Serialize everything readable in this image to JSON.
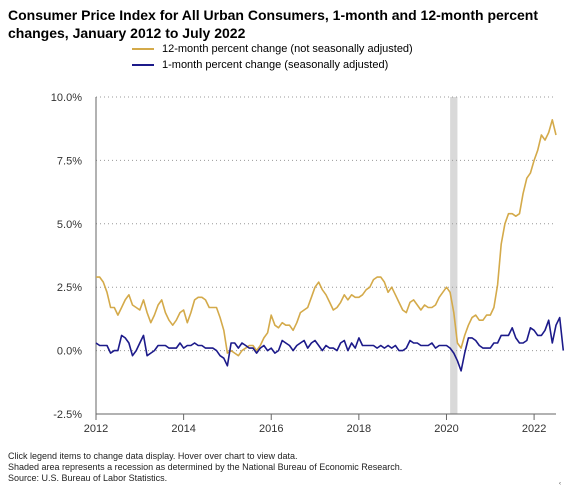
{
  "title": "Consumer Price Index for All Urban Consumers, 1-month and 12-month percent changes, January 2012 to July 2022",
  "legend": {
    "s12": "12-month percent change (not seasonally adjusted)",
    "s1": "1-month percent change (seasonally adjusted)"
  },
  "footer": {
    "line1": "Click legend items to change data display. Hover over chart to view data.",
    "line2": "Shaded area represents a recession as determined by the National Bureau of Economic Research.",
    "line3": "Source: U.S. Bureau of Labor Statistics."
  },
  "colors": {
    "s12": "#d4aa4a",
    "s1": "#1c1a8a",
    "recession": "#d9d9d9",
    "grid": "#999999"
  },
  "corner_mark": "‹",
  "chart_data": {
    "type": "line",
    "title": "Consumer Price Index for All Urban Consumers, 1-month and 12-month percent changes, January 2012 to July 2022",
    "x_start": "2012-01",
    "x_end": "2022-07",
    "xticks": [
      "2012",
      "2014",
      "2016",
      "2018",
      "2020",
      "2022"
    ],
    "yticks": [
      -2.5,
      0,
      2.5,
      5,
      7.5,
      10
    ],
    "ytick_labels": [
      "-2.5%",
      "0.0%",
      "2.5%",
      "5.0%",
      "7.5%",
      "10.0%"
    ],
    "ylim": [
      -2.5,
      10
    ],
    "grid": "horizontal dotted",
    "legend_position": "top",
    "recession": {
      "start": "2020-02",
      "end": "2020-04"
    },
    "series": [
      {
        "name": "12-month percent change (not seasonally adjusted)",
        "values": [
          2.9,
          2.9,
          2.7,
          2.3,
          1.7,
          1.7,
          1.4,
          1.7,
          2.0,
          2.2,
          1.8,
          1.7,
          1.6,
          2.0,
          1.5,
          1.1,
          1.4,
          1.8,
          2.0,
          1.5,
          1.2,
          1.0,
          1.2,
          1.5,
          1.6,
          1.1,
          1.5,
          2.0,
          2.1,
          2.1,
          2.0,
          1.7,
          1.7,
          1.7,
          1.3,
          0.8,
          -0.1,
          0.0,
          -0.1,
          -0.2,
          0.0,
          0.1,
          0.2,
          0.2,
          0.0,
          0.2,
          0.5,
          0.7,
          1.4,
          1.0,
          0.9,
          1.1,
          1.0,
          1.0,
          0.8,
          1.1,
          1.5,
          1.6,
          1.7,
          2.1,
          2.5,
          2.7,
          2.4,
          2.2,
          1.9,
          1.6,
          1.7,
          1.9,
          2.2,
          2.0,
          2.2,
          2.1,
          2.1,
          2.2,
          2.4,
          2.5,
          2.8,
          2.9,
          2.9,
          2.7,
          2.3,
          2.5,
          2.2,
          1.9,
          1.6,
          1.5,
          1.9,
          2.0,
          1.8,
          1.6,
          1.8,
          1.7,
          1.7,
          1.8,
          2.1,
          2.3,
          2.5,
          2.3,
          1.5,
          0.3,
          0.1,
          0.6,
          1.0,
          1.3,
          1.4,
          1.2,
          1.2,
          1.4,
          1.4,
          1.7,
          2.6,
          4.2,
          5.0,
          5.4,
          5.4,
          5.3,
          5.4,
          6.2,
          6.8,
          7.0,
          7.5,
          7.9,
          8.5,
          8.3,
          8.6,
          9.1,
          8.5
        ]
      },
      {
        "name": "1-month percent change (seasonally adjusted)",
        "values": [
          0.3,
          0.2,
          0.2,
          0.2,
          -0.1,
          0.0,
          0.0,
          0.6,
          0.5,
          0.3,
          -0.2,
          0.0,
          0.3,
          0.6,
          -0.2,
          -0.1,
          0.0,
          0.2,
          0.2,
          0.2,
          0.1,
          0.1,
          0.1,
          0.3,
          0.1,
          0.2,
          0.2,
          0.3,
          0.2,
          0.2,
          0.1,
          0.1,
          0.1,
          0.0,
          -0.2,
          -0.3,
          -0.6,
          0.3,
          0.3,
          0.1,
          0.3,
          0.2,
          0.1,
          0.1,
          -0.1,
          0.1,
          0.2,
          0.0,
          0.1,
          -0.1,
          0.0,
          0.4,
          0.3,
          0.2,
          0.0,
          0.2,
          0.3,
          0.4,
          0.1,
          0.3,
          0.4,
          0.2,
          0.0,
          0.2,
          0.1,
          0.1,
          0.0,
          0.3,
          0.4,
          0.0,
          0.3,
          0.1,
          0.5,
          0.2,
          0.2,
          0.2,
          0.2,
          0.1,
          0.2,
          0.1,
          0.2,
          0.1,
          0.2,
          0.0,
          0.0,
          0.1,
          0.4,
          0.3,
          0.3,
          0.2,
          0.2,
          0.2,
          0.3,
          0.1,
          0.2,
          0.2,
          0.2,
          0.1,
          -0.1,
          -0.4,
          -0.8,
          -0.1,
          0.5,
          0.5,
          0.4,
          0.2,
          0.1,
          0.1,
          0.1,
          0.3,
          0.3,
          0.6,
          0.6,
          0.6,
          0.9,
          0.5,
          0.3,
          0.3,
          0.4,
          0.9,
          0.8,
          0.6,
          0.6,
          0.8,
          1.2,
          0.3,
          1.0,
          1.3,
          0.0
        ]
      }
    ]
  }
}
